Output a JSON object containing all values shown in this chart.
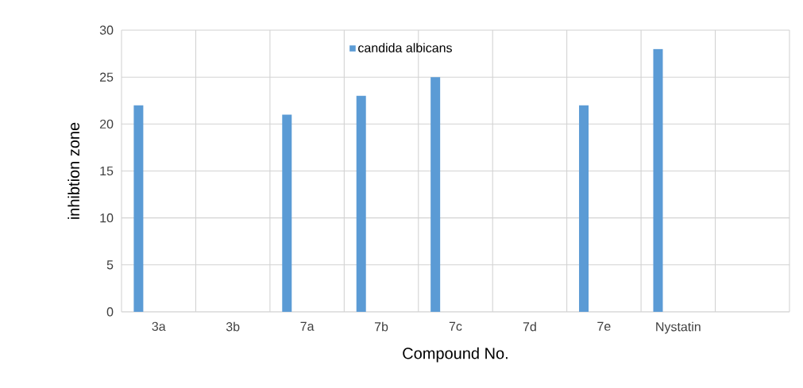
{
  "chart_data": {
    "type": "bar",
    "xlabel": "Compound No.",
    "ylabel": "inhibtion zone",
    "categories": [
      "3a",
      "3b",
      "7a",
      "7b",
      "7c",
      "7d",
      "7e",
      "Nystatin",
      null
    ],
    "series": [
      {
        "name": "candida albicans",
        "color": "#5b9bd5",
        "values": [
          22,
          null,
          21,
          23,
          25,
          null,
          22,
          28,
          null
        ]
      }
    ],
    "ylim": [
      0,
      30
    ],
    "yticks": [
      0,
      5,
      10,
      15,
      20,
      25,
      30
    ],
    "grid": true,
    "legend": "top"
  }
}
